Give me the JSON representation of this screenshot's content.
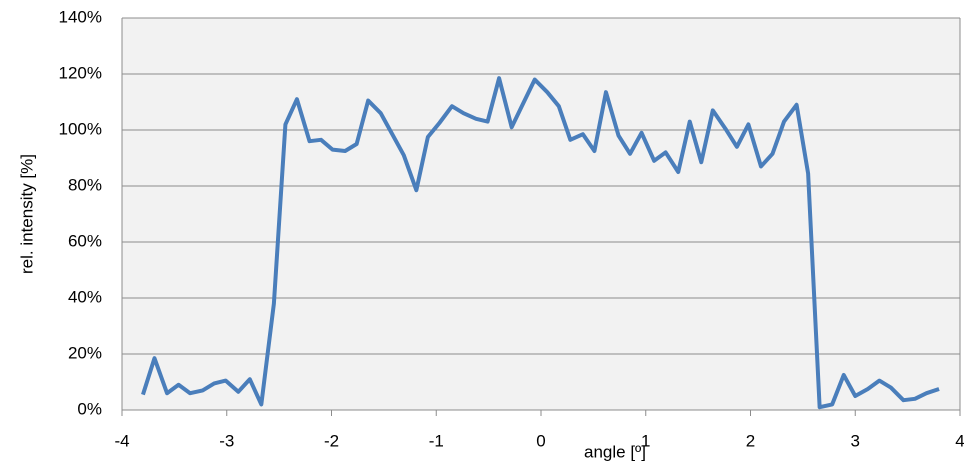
{
  "chart_data": {
    "type": "line",
    "xlabel": "angle [º]",
    "ylabel": "rel. intensity [%]",
    "x": [
      -3.8,
      -3.69,
      -3.57,
      -3.46,
      -3.35,
      -3.23,
      -3.12,
      -3.01,
      -2.89,
      -2.78,
      -2.67,
      -2.55,
      -2.44,
      -2.33,
      -2.21,
      -2.1,
      -1.99,
      -1.87,
      -1.76,
      -1.65,
      -1.53,
      -1.42,
      -1.31,
      -1.19,
      -1.08,
      -0.97,
      -0.85,
      -0.74,
      -0.62,
      -0.51,
      -0.4,
      -0.28,
      -0.17,
      -0.06,
      0.06,
      0.17,
      0.28,
      0.4,
      0.51,
      0.62,
      0.74,
      0.85,
      0.96,
      1.08,
      1.19,
      1.31,
      1.42,
      1.53,
      1.64,
      1.76,
      1.87,
      1.98,
      2.1,
      2.21,
      2.32,
      2.44,
      2.55,
      2.66,
      2.78,
      2.89,
      3.0,
      3.12,
      3.23,
      3.34,
      3.46,
      3.57,
      3.68,
      3.8
    ],
    "series": [
      {
        "color": "#4a7ebb",
        "values": [
          5.5,
          18.5,
          6,
          9,
          6,
          7,
          9.5,
          10.5,
          6.5,
          11,
          2,
          38,
          102,
          111,
          96,
          96.5,
          93,
          92.5,
          95,
          110.5,
          106,
          98.5,
          91,
          78.5,
          97.5,
          102.5,
          108.5,
          106,
          104,
          103,
          118.5,
          101,
          109.5,
          118,
          113.5,
          108.5,
          96.5,
          98.5,
          92.5,
          113.5,
          98,
          91.5,
          99,
          89,
          92,
          85,
          103,
          88.5,
          107,
          100.5,
          94,
          102,
          87,
          91.5,
          103,
          109,
          84.5,
          1,
          2,
          12.5,
          5,
          7.5,
          10.5,
          8,
          3.5,
          4,
          6,
          7.5
        ]
      }
    ],
    "xlim": [
      -4,
      4
    ],
    "xticks": [
      -4,
      -3,
      -2,
      -1,
      0,
      1,
      2,
      3,
      4
    ],
    "ylim": [
      0,
      140
    ],
    "yticks": [
      {
        "value": 0,
        "label": "0%"
      },
      {
        "value": 20,
        "label": "20%"
      },
      {
        "value": 40,
        "label": "40%"
      },
      {
        "value": 60,
        "label": "60%"
      },
      {
        "value": 80,
        "label": "80%"
      },
      {
        "value": 100,
        "label": "100%"
      },
      {
        "value": 120,
        "label": "120%"
      },
      {
        "value": 140,
        "label": "140%"
      }
    ],
    "grid": true
  }
}
